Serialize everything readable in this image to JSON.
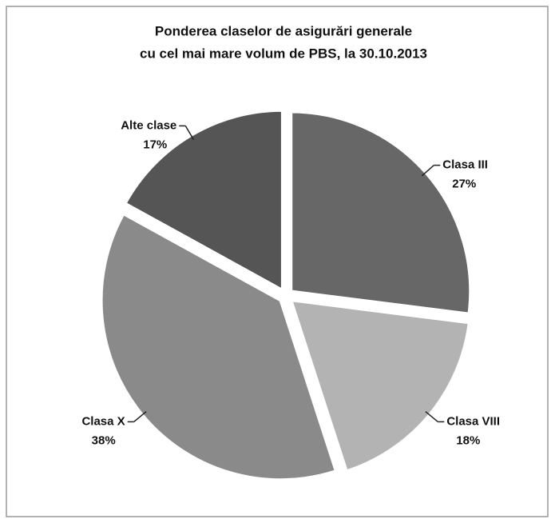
{
  "chart_data": {
    "type": "pie",
    "title": [
      "Ponderea  claselor de asigurări generale",
      "cu cel mai mare volum de PBS, la 30.10.2013"
    ],
    "categories": [
      "Clasa III",
      "Clasa VIII",
      "Clasa X",
      "Alte clase"
    ],
    "values": [
      27,
      18,
      38,
      17
    ],
    "value_labels": [
      "27%",
      "18%",
      "38%",
      "17%"
    ],
    "colors": [
      "#676767",
      "#b3b3b3",
      "#8a8a8a",
      "#555555"
    ]
  }
}
